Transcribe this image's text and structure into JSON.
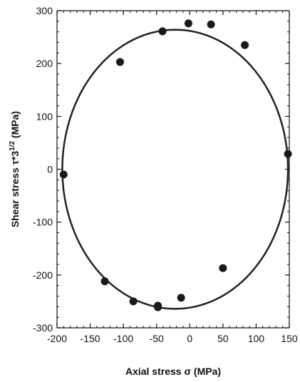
{
  "chart_data": {
    "type": "scatter",
    "xlabel": "Axial stress σ (MPa)",
    "ylabel_main": "Shear stress τ*3",
    "ylabel_superscript": "1/2",
    "ylabel_unit": " (MPa)",
    "xlim": [
      -200,
      150
    ],
    "ylim": [
      -300,
      300
    ],
    "x_ticks": [
      -200,
      -150,
      -100,
      -50,
      0,
      50,
      100,
      150
    ],
    "y_ticks": [
      -300,
      -200,
      -100,
      0,
      100,
      200,
      300
    ],
    "x_tick_labels": [
      "-200",
      "-150",
      "-100",
      "-50",
      "0",
      "50",
      "100",
      "150"
    ],
    "y_tick_labels": [
      "-300",
      "-200",
      "-100",
      "0",
      "100",
      "200",
      "300"
    ],
    "grid": false,
    "points": [
      {
        "x": -190,
        "y": -10
      },
      {
        "x": -105,
        "y": 203
      },
      {
        "x": -41,
        "y": 261
      },
      {
        "x": -2,
        "y": 276
      },
      {
        "x": 32,
        "y": 274
      },
      {
        "x": 83,
        "y": 235
      },
      {
        "x": 148,
        "y": 29
      },
      {
        "x": 50,
        "y": -187
      },
      {
        "x": -13,
        "y": -243
      },
      {
        "x": -48,
        "y": -258
      },
      {
        "x": -48,
        "y": -261
      },
      {
        "x": -85,
        "y": -250
      },
      {
        "x": -128,
        "y": -212
      }
    ],
    "fit_curve": {
      "type": "ellipse",
      "center": [
        -22,
        0
      ],
      "semi_axis_x": 170,
      "semi_axis_y": 264
    }
  }
}
